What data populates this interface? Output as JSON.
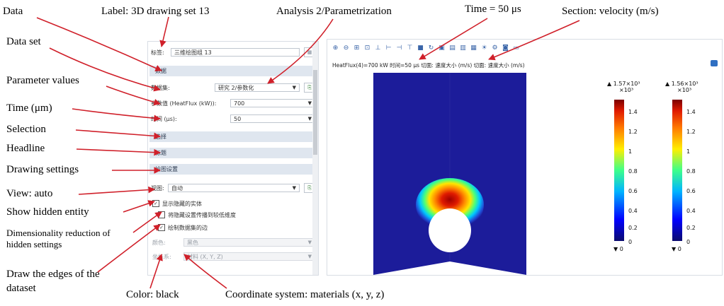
{
  "annotations": {
    "data": "Data",
    "data_set": "Data set",
    "parameter_values": "Parameter values",
    "time": "Time (μm)",
    "selection": "Selection",
    "headline": "Headline",
    "drawing_settings": "Drawing settings",
    "view": "View: auto",
    "show_hidden": "Show hidden entity",
    "dim_reduction": "Dimensionality reduction of hidden settings",
    "draw_edges": "Draw the edges of the dataset",
    "color": "Color: black",
    "coord_system": "Coordinate system: materials (x, y, z)",
    "label": "Label: 3D drawing set 13",
    "analysis": "Analysis 2/Parametrization",
    "time_top": "Time = 50 μs",
    "section": "Section: velocity (m/s)"
  },
  "panel": {
    "label_caption": "标签:",
    "label_value": "三维绘图组 13",
    "section_data": "数据",
    "dataset_label": "数据集:",
    "dataset_value": "研究 2/参数化",
    "param_label": "参数值 (HeatFlux (kW)):",
    "param_value": "700",
    "time_label": "时间 (μs):",
    "time_value": "50",
    "section_selection": "选择",
    "section_title": "标题",
    "section_plot": "绘图设置",
    "view_label": "视图:",
    "view_value": "自动",
    "check_show_hidden": "显示隐藏的实体",
    "check_reduce": "将隐藏设置传播到较低维度",
    "check_edges": "绘制数据集的边",
    "color_label": "颜色:",
    "color_value": "黑色",
    "frame_label": "坐标系:",
    "frame_value": "材料  (X, Y, Z)"
  },
  "graphics": {
    "toolbar_icons": [
      "zoom-in-icon",
      "zoom-out-icon",
      "zoom-box-icon",
      "zoom-extents-icon",
      "axis-icon",
      "view-xy-icon",
      "view-yz-icon",
      "view-zx-icon",
      "camera-icon",
      "rotate-icon",
      "select-icon",
      "render-icon",
      "wireframe-icon",
      "grid-icon",
      "light-icon",
      "settings-icon",
      "snapshot-icon",
      "print-icon"
    ],
    "plot_title": "HeatFlux(4)=700 kW 时间=50 μs   切面: 速度大小 (m/s)   切面: 速度大小 (m/s)",
    "colorbar1": {
      "max": "▲ 1.57×10³",
      "unit": "×10³",
      "min": "▼ 0"
    },
    "colorbar2": {
      "max": "▲ 1.56×10³",
      "unit": "×10³",
      "min": "▼ 0"
    },
    "ticks": [
      "1.4",
      "1.2",
      "1",
      "0.8",
      "0.6",
      "0.4",
      "0.2",
      "0"
    ]
  },
  "colors": {
    "field_background": "#1c1c9a",
    "section_bg": "#dfe6ef"
  }
}
